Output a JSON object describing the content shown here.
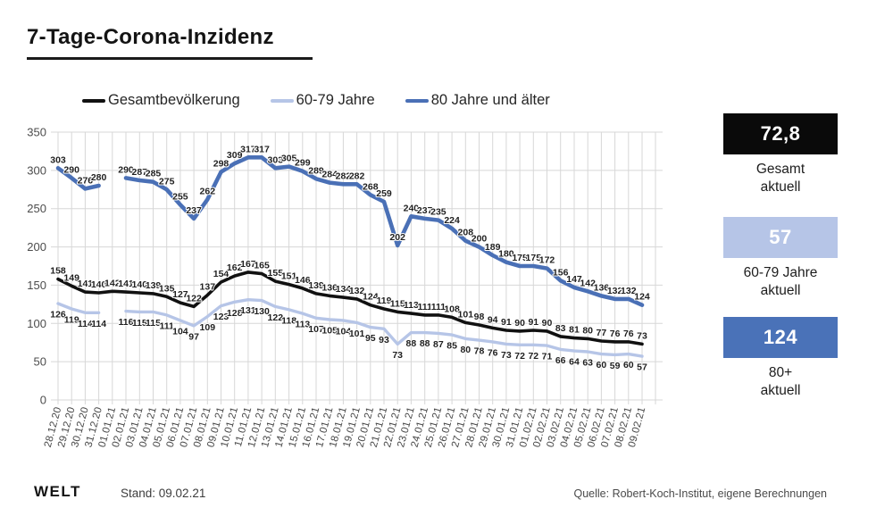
{
  "title": "7-Tage-Corona-Inzidenz",
  "legend": [
    {
      "label": "Gesamtbevölkerung",
      "color": "#111111"
    },
    {
      "label": "60-79 Jahre",
      "color": "#b6c5e7"
    },
    {
      "label": "80 Jahre und älter",
      "color": "#4a70b6"
    }
  ],
  "chart_data": {
    "type": "line",
    "title": "7-Tage-Corona-Inzidenz",
    "x": [
      "28.12.20",
      "29.12.20",
      "30.12.20",
      "31.12.20",
      "01.01.21",
      "02.01.21",
      "03.01.21",
      "04.01.21",
      "05.01.21",
      "06.01.21",
      "07.01.21",
      "08.01.21",
      "09.01.21",
      "10.01.21",
      "11.01.21",
      "12.01.21",
      "13.01.21",
      "14.01.21",
      "15.01.21",
      "16.01.21",
      "17.01.21",
      "18.01.21",
      "19.01.21",
      "20.01.21",
      "21.01.21",
      "22.01.21",
      "23.01.21",
      "24.01.21",
      "25.01.21",
      "26.01.21",
      "27.01.21",
      "28.01.21",
      "29.01.21",
      "30.01.21",
      "31.01.21",
      "01.02.21",
      "02.02.21",
      "03.02.21",
      "04.02.21",
      "05.02.21",
      "06.02.21",
      "07.02.21",
      "08.02.21",
      "09.02.21"
    ],
    "series": [
      {
        "name": "60-79 Jahre",
        "color": "#b6c5e7",
        "label_position": "below",
        "values": [
          126,
          119,
          114,
          114,
          null,
          116,
          115,
          115,
          111,
          104,
          97,
          109,
          123,
          128,
          131,
          130,
          122,
          118,
          113,
          107,
          105,
          104,
          101,
          95,
          93,
          73,
          88,
          88,
          87,
          85,
          80,
          78,
          76,
          73,
          72,
          72,
          71,
          66,
          64,
          63,
          60,
          59,
          60,
          57
        ]
      },
      {
        "name": "Gesamtbevölkerung",
        "color": "#111111",
        "label_position": "above",
        "values": [
          158,
          149,
          141,
          140,
          142,
          141,
          140,
          139,
          135,
          127,
          122,
          137,
          154,
          162,
          167,
          165,
          155,
          151,
          146,
          139,
          136,
          134,
          132,
          124,
          119,
          115,
          113,
          111,
          111,
          108,
          101,
          98,
          94,
          91,
          90,
          91,
          90,
          83,
          81,
          80,
          77,
          76,
          76,
          73
        ]
      },
      {
        "name": "80 Jahre und älter",
        "color": "#4a70b6",
        "label_position": "above",
        "values": [
          303,
          290,
          276,
          280,
          null,
          290,
          287,
          285,
          275,
          255,
          237,
          262,
          298,
          309,
          317,
          317,
          303,
          305,
          299,
          289,
          284,
          282,
          282,
          268,
          259,
          202,
          240,
          237,
          235,
          224,
          208,
          200,
          189,
          180,
          175,
          175,
          172,
          156,
          147,
          142,
          136,
          132,
          132,
          124
        ]
      }
    ],
    "ylim": [
      0,
      350
    ],
    "yticks": [
      0,
      50,
      100,
      150,
      200,
      250,
      300,
      350
    ],
    "grid": true,
    "legend_position": "top"
  },
  "stats": [
    {
      "value": "72,8",
      "label_lines": [
        "Gesamt",
        "aktuell"
      ],
      "bg": "#0a0a0a",
      "fg": "#ffffff"
    },
    {
      "value": "57",
      "label_lines": [
        "60-79 Jahre",
        "aktuell"
      ],
      "bg": "#b6c5e7",
      "fg": "#ffffff"
    },
    {
      "value": "124",
      "label_lines": [
        "80+",
        "aktuell"
      ],
      "bg": "#4a72b8",
      "fg": "#ffffff"
    }
  ],
  "footer": {
    "brand": "WELT",
    "stand": "Stand: 09.02.21",
    "source": "Quelle: Robert-Koch-Institut, eigene Berechnungen"
  }
}
